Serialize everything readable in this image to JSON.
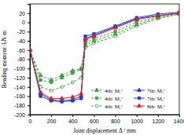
{
  "chart_data": {
    "type": "line",
    "x_label": "Joint displacement Δ / mm",
    "y_label": "Bending moment /kN·m",
    "x": [
      0,
      100,
      200,
      300,
      400,
      480,
      520,
      600,
      800,
      1000,
      1200,
      1400
    ],
    "xlim": [
      0,
      1400
    ],
    "xticks": [
      0,
      200,
      400,
      600,
      800,
      1000,
      1200,
      1400
    ],
    "ylim": [
      -200,
      40
    ],
    "yticks": [
      -200,
      -180,
      -160,
      -140,
      -120,
      -100,
      -80,
      -60,
      -40,
      -20,
      0,
      20
    ],
    "grid": false,
    "legend": "lower right",
    "series": [
      {
        "name": "4th: M₁ᵉ",
        "color": "#3aa53a",
        "marker": "triangle",
        "line_style": "dashed",
        "values": [
          -60,
          -115,
          -125,
          -115,
          -105,
          -100,
          -50,
          -40,
          -25,
          -5,
          10,
          18
        ]
      },
      {
        "name": "4th: M₂ᵉ",
        "color": "#3aa53a",
        "marker": "square",
        "line_style": "dashed",
        "values": [
          -60,
          -125,
          -130,
          -120,
          -110,
          -102,
          -45,
          -35,
          -20,
          0,
          12,
          20
        ]
      },
      {
        "name": "4th: M₃ᵉ",
        "color": "#3aa53a",
        "marker": "circle",
        "line_style": "dashed",
        "values": [
          -60,
          -140,
          -148,
          -140,
          -130,
          -120,
          -55,
          -45,
          -30,
          -8,
          8,
          18
        ]
      },
      {
        "name": "7th: M₁ᵉ",
        "color": "#1f3fd0",
        "marker": "triangle",
        "line_style": "solid",
        "values": [
          -60,
          -155,
          -168,
          -170,
          -168,
          -160,
          -35,
          -28,
          -10,
          8,
          15,
          20
        ]
      },
      {
        "name": "7th: M₂ᵉ",
        "color": "#1f3fd0",
        "marker": "square",
        "line_style": "solid",
        "values": [
          -60,
          -160,
          -170,
          -172,
          -170,
          -165,
          -30,
          -25,
          -8,
          10,
          18,
          22
        ]
      },
      {
        "name": "8th: M₁ᵉ",
        "color": "#e02020",
        "marker": "triangle",
        "line_style": "solid",
        "values": [
          -60,
          -152,
          -165,
          -165,
          -162,
          -155,
          -38,
          -30,
          -12,
          6,
          14,
          20
        ]
      }
    ]
  }
}
